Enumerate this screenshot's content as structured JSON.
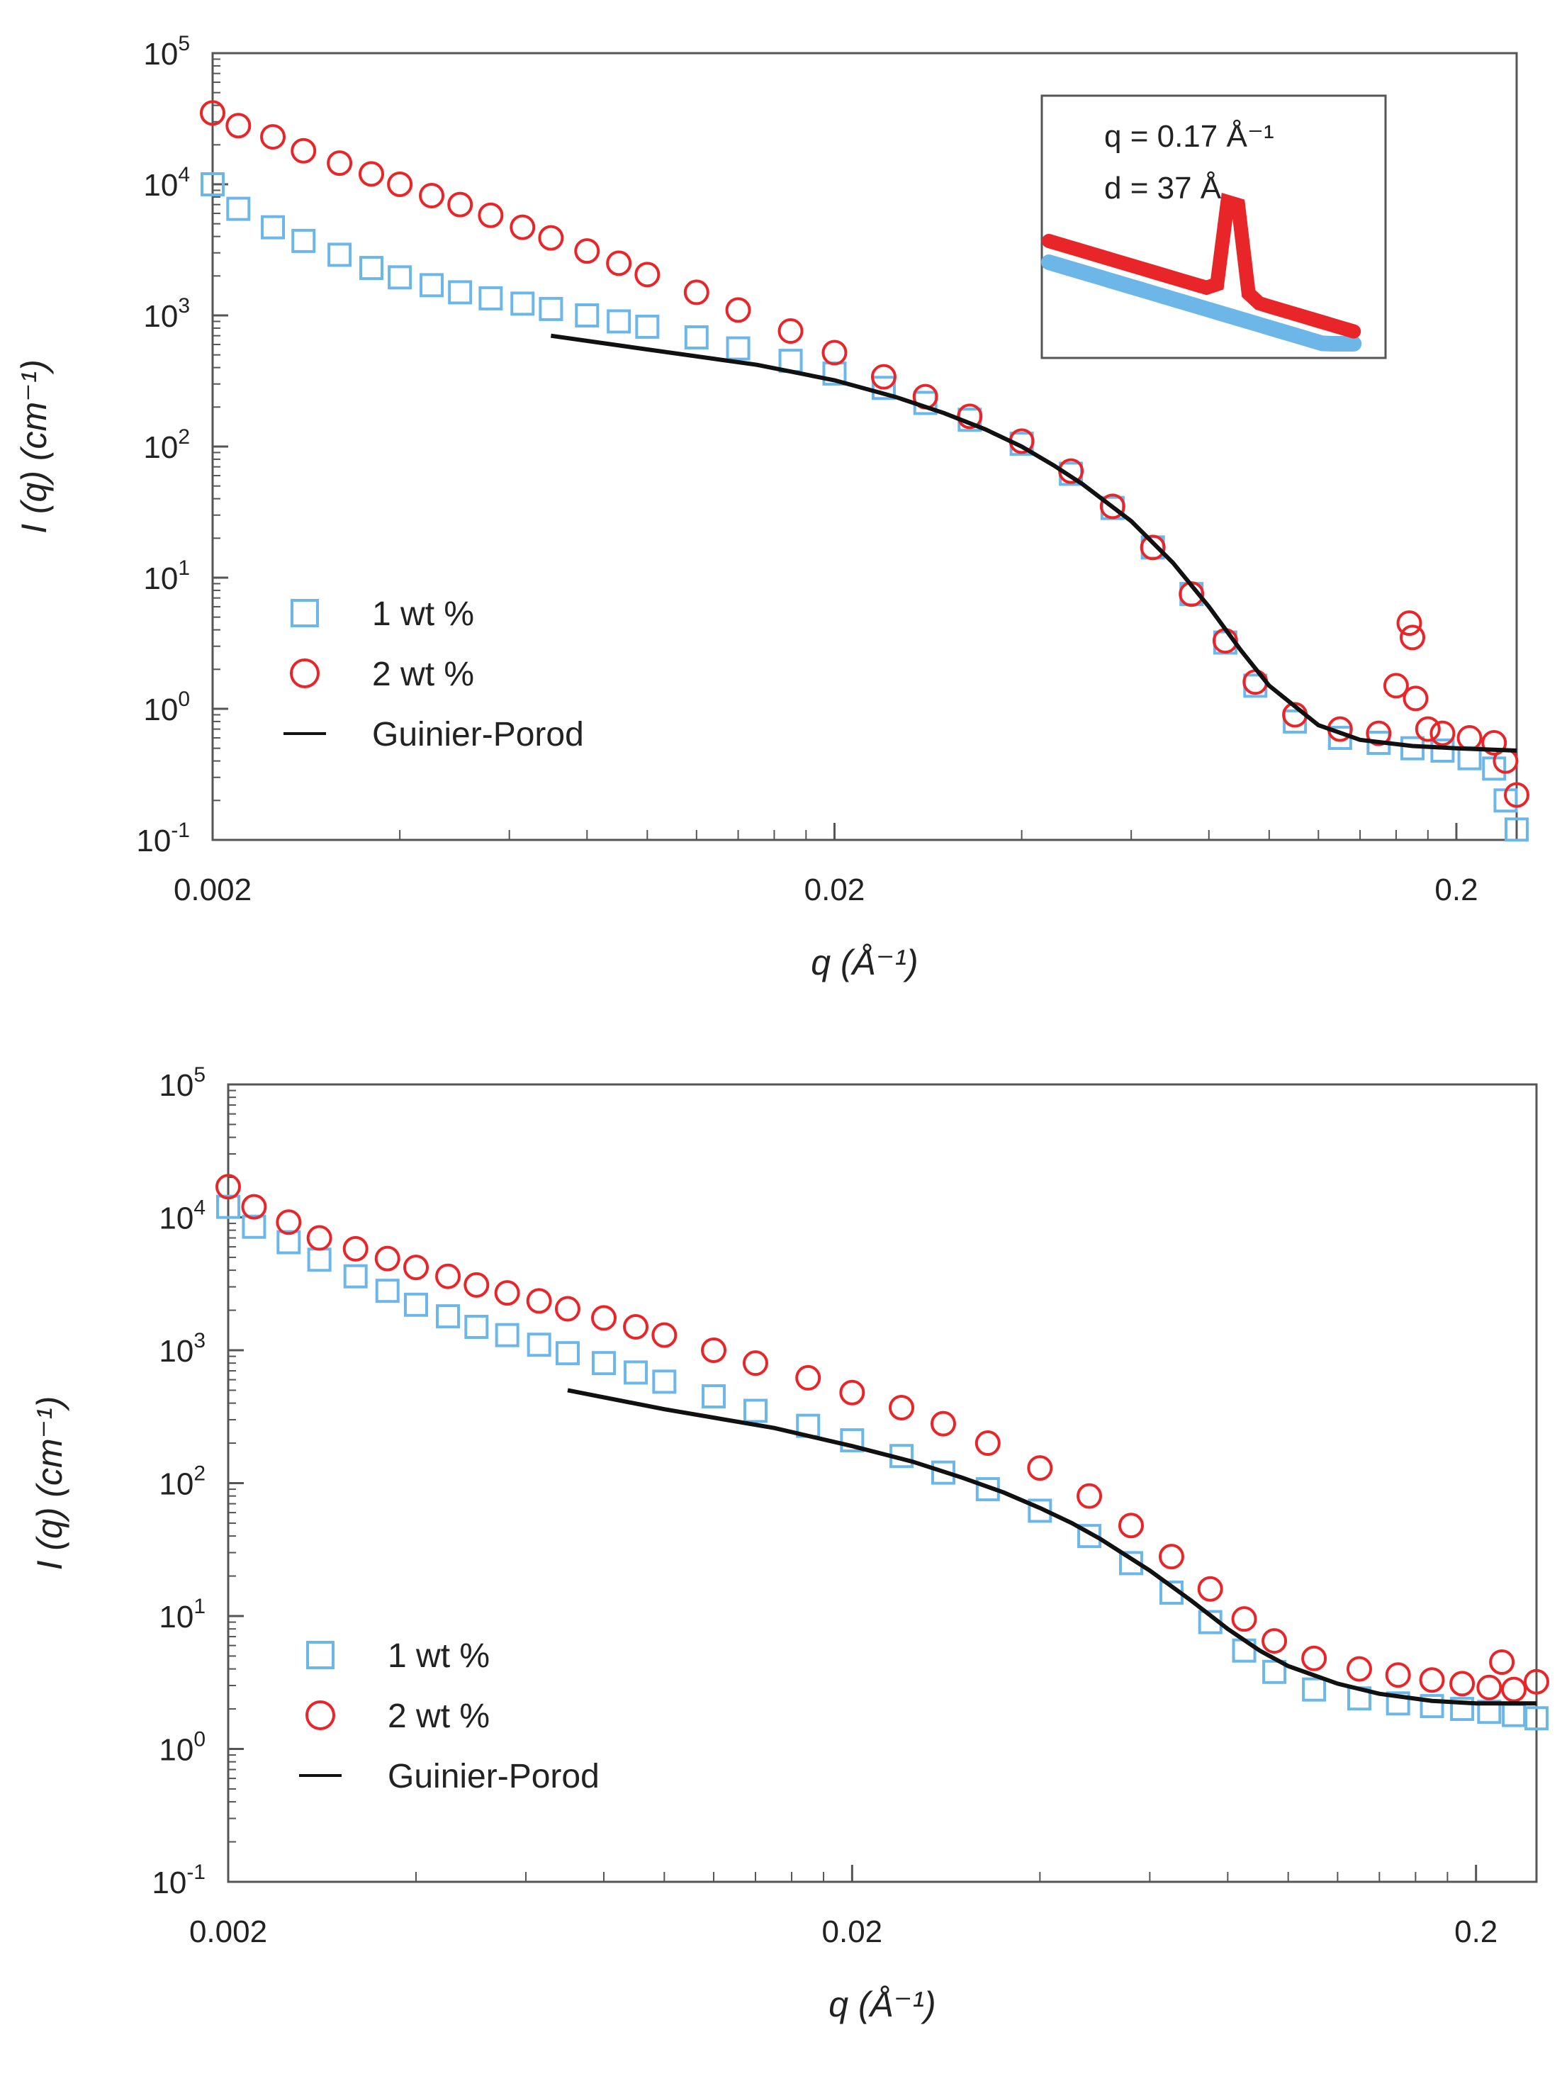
{
  "chart_data": [
    {
      "type": "scatter",
      "panel": "top",
      "xscale": "log",
      "yscale": "log",
      "xlim": [
        0.002,
        0.25
      ],
      "ylim": [
        0.1,
        100000
      ],
      "xlabel": "q (Å⁻¹)",
      "ylabel": "I (q) (cm⁻¹)",
      "xticks": [
        {
          "value": 0.002,
          "label": "0.002"
        },
        {
          "value": 0.02,
          "label": "0.02"
        },
        {
          "value": 0.2,
          "label": "0.2"
        }
      ],
      "yticks": [
        {
          "value": 100000,
          "base": "10",
          "exp": "5"
        },
        {
          "value": 10000,
          "base": "10",
          "exp": "4"
        },
        {
          "value": 1000,
          "base": "10",
          "exp": "3"
        },
        {
          "value": 100,
          "base": "10",
          "exp": "2"
        },
        {
          "value": 10,
          "base": "10",
          "exp": "1"
        },
        {
          "value": 1,
          "base": "10",
          "exp": "0"
        },
        {
          "value": 0.1,
          "base": "10",
          "exp": "-1"
        }
      ],
      "legend": {
        "position": "bottom-left",
        "entries": [
          "1 wt %",
          "2 wt %",
          "Guinier-Porod"
        ]
      },
      "series": [
        {
          "name": "1 wt %",
          "marker": "square",
          "color": "#6db6e8",
          "x": [
            0.002,
            0.0022,
            0.0025,
            0.0028,
            0.0032,
            0.0036,
            0.004,
            0.0045,
            0.005,
            0.0056,
            0.0063,
            0.007,
            0.008,
            0.009,
            0.01,
            0.012,
            0.014,
            0.017,
            0.02,
            0.024,
            0.028,
            0.033,
            0.04,
            0.048,
            0.056,
            0.065,
            0.075,
            0.085,
            0.095,
            0.11,
            0.13,
            0.15,
            0.17,
            0.19,
            0.21,
            0.23,
            0.24,
            0.25
          ],
          "y": [
            10000,
            6500,
            4700,
            3700,
            2900,
            2300,
            1950,
            1700,
            1500,
            1350,
            1230,
            1120,
            1000,
            900,
            820,
            680,
            560,
            450,
            360,
            280,
            215,
            160,
            105,
            62,
            34,
            17,
            7.5,
            3.2,
            1.5,
            0.8,
            0.6,
            0.55,
            0.5,
            0.48,
            0.42,
            0.35,
            0.2,
            0.12
          ]
        },
        {
          "name": "2 wt %",
          "marker": "circle",
          "color": "#e8262a",
          "x": [
            0.002,
            0.0022,
            0.0025,
            0.0028,
            0.0032,
            0.0036,
            0.004,
            0.0045,
            0.005,
            0.0056,
            0.0063,
            0.007,
            0.008,
            0.009,
            0.01,
            0.012,
            0.014,
            0.017,
            0.02,
            0.024,
            0.028,
            0.033,
            0.04,
            0.048,
            0.056,
            0.065,
            0.075,
            0.085,
            0.095,
            0.11,
            0.13,
            0.15,
            0.16,
            0.168,
            0.17,
            0.172,
            0.18,
            0.19,
            0.21,
            0.23,
            0.24,
            0.25
          ],
          "y": [
            35000,
            28000,
            23000,
            18000,
            14500,
            12000,
            10000,
            8200,
            7000,
            5800,
            4700,
            3900,
            3100,
            2500,
            2050,
            1500,
            1100,
            760,
            520,
            340,
            240,
            170,
            110,
            65,
            35,
            17,
            7.5,
            3.3,
            1.6,
            0.9,
            0.7,
            0.65,
            1.5,
            4.5,
            3.5,
            1.2,
            0.7,
            0.65,
            0.6,
            0.55,
            0.4,
            0.22
          ]
        },
        {
          "name": "Guinier-Porod",
          "marker": "line",
          "color": "#111111",
          "x": [
            0.007,
            0.01,
            0.015,
            0.02,
            0.025,
            0.03,
            0.035,
            0.04,
            0.045,
            0.05,
            0.06,
            0.07,
            0.08,
            0.09,
            0.1,
            0.12,
            0.14,
            0.17,
            0.2,
            0.25
          ],
          "y": [
            700,
            550,
            420,
            320,
            240,
            180,
            135,
            100,
            72,
            52,
            27,
            13,
            6,
            2.8,
            1.5,
            0.75,
            0.58,
            0.52,
            0.5,
            0.48
          ]
        }
      ],
      "inset": {
        "annotation_line1": "q = 0.17 Å⁻¹",
        "annotation_line2": "d = 37 Å"
      }
    },
    {
      "type": "scatter",
      "panel": "bottom",
      "xscale": "log",
      "yscale": "log",
      "xlim": [
        0.002,
        0.25
      ],
      "ylim": [
        0.1,
        100000
      ],
      "xlabel": "q (Å⁻¹)",
      "ylabel": "I (q) (cm⁻¹)",
      "xticks": [
        {
          "value": 0.002,
          "label": "0.002"
        },
        {
          "value": 0.02,
          "label": "0.02"
        },
        {
          "value": 0.2,
          "label": "0.2"
        }
      ],
      "yticks": [
        {
          "value": 100000,
          "base": "10",
          "exp": "5"
        },
        {
          "value": 10000,
          "base": "10",
          "exp": "4"
        },
        {
          "value": 1000,
          "base": "10",
          "exp": "3"
        },
        {
          "value": 100,
          "base": "10",
          "exp": "2"
        },
        {
          "value": 10,
          "base": "10",
          "exp": "1"
        },
        {
          "value": 1,
          "base": "10",
          "exp": "0"
        },
        {
          "value": 0.1,
          "base": "10",
          "exp": "-1"
        }
      ],
      "legend": {
        "position": "bottom-left",
        "entries": [
          "1 wt %",
          "2 wt %",
          "Guinier-Porod"
        ]
      },
      "series": [
        {
          "name": "1 wt %",
          "marker": "square",
          "color": "#6db6e8",
          "x": [
            0.002,
            0.0022,
            0.0025,
            0.0028,
            0.0032,
            0.0036,
            0.004,
            0.0045,
            0.005,
            0.0056,
            0.0063,
            0.007,
            0.008,
            0.009,
            0.01,
            0.012,
            0.014,
            0.017,
            0.02,
            0.024,
            0.028,
            0.033,
            0.04,
            0.048,
            0.056,
            0.065,
            0.075,
            0.085,
            0.095,
            0.11,
            0.13,
            0.15,
            0.17,
            0.19,
            0.21,
            0.23,
            0.25
          ],
          "y": [
            12000,
            8500,
            6500,
            4800,
            3600,
            2800,
            2200,
            1800,
            1500,
            1300,
            1100,
            950,
            800,
            680,
            580,
            450,
            350,
            270,
            210,
            160,
            120,
            90,
            62,
            40,
            25,
            15,
            9,
            5.5,
            3.8,
            2.8,
            2.4,
            2.2,
            2.1,
            2.0,
            1.9,
            1.8,
            1.7
          ]
        },
        {
          "name": "2 wt %",
          "marker": "circle",
          "color": "#e8262a",
          "x": [
            0.002,
            0.0022,
            0.0025,
            0.0028,
            0.0032,
            0.0036,
            0.004,
            0.0045,
            0.005,
            0.0056,
            0.0063,
            0.007,
            0.008,
            0.009,
            0.01,
            0.012,
            0.014,
            0.017,
            0.02,
            0.024,
            0.028,
            0.033,
            0.04,
            0.048,
            0.056,
            0.065,
            0.075,
            0.085,
            0.095,
            0.11,
            0.13,
            0.15,
            0.17,
            0.19,
            0.21,
            0.22,
            0.23,
            0.25
          ],
          "y": [
            17000,
            12000,
            9200,
            7000,
            5800,
            4900,
            4200,
            3600,
            3100,
            2700,
            2350,
            2050,
            1750,
            1500,
            1300,
            1000,
            800,
            620,
            480,
            370,
            280,
            200,
            130,
            80,
            48,
            28,
            16,
            9.5,
            6.5,
            4.8,
            4.0,
            3.6,
            3.3,
            3.1,
            2.9,
            4.5,
            2.8,
            3.2
          ]
        },
        {
          "name": "Guinier-Porod",
          "marker": "line",
          "color": "#111111",
          "x": [
            0.007,
            0.01,
            0.015,
            0.02,
            0.025,
            0.03,
            0.035,
            0.04,
            0.045,
            0.05,
            0.06,
            0.07,
            0.08,
            0.09,
            0.1,
            0.12,
            0.14,
            0.17,
            0.2,
            0.25
          ],
          "y": [
            500,
            360,
            260,
            190,
            145,
            110,
            85,
            65,
            50,
            38,
            22,
            13,
            8,
            5.5,
            4.2,
            3.1,
            2.6,
            2.3,
            2.2,
            2.2
          ]
        }
      ]
    }
  ]
}
